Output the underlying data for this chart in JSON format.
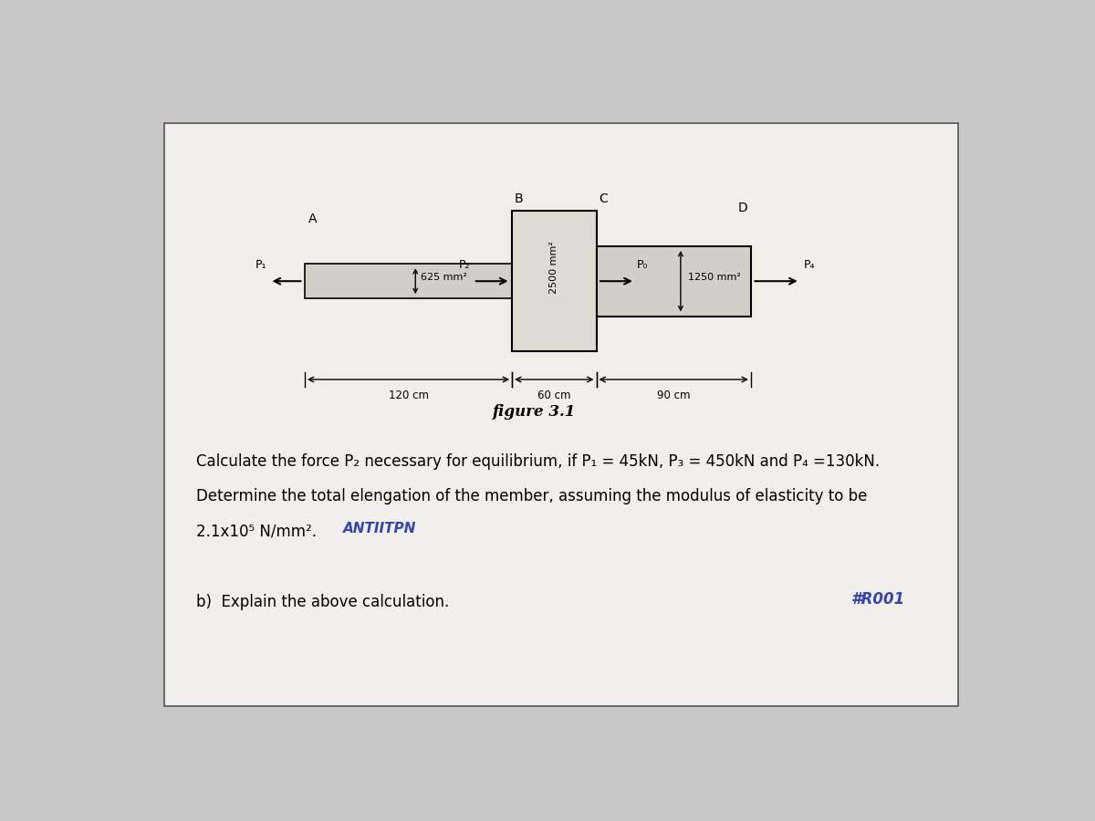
{
  "bg_color": "#c8c8c8",
  "paper_color": "#e8e8e8",
  "fig_width": 12.0,
  "fig_height": 9.0,
  "title": "figure 3.1",
  "line1": "Calculate the force P₂ necessary for equilibrium, if P₁ = 45kN, P₃ = 450kN and P₄ =130kN.",
  "line2": "Determine the total elengation of the member, assuming the modulus of elasticity to be",
  "line3": "2.1x10⁵ N/mm².",
  "line4": "b)  Explain the above calculation.",
  "section_A_label": "A",
  "section_B_label": "B",
  "section_C_label": "C",
  "section_D_label": "D",
  "area1": "625 mm²",
  "area2": "2500 mm²",
  "area3": "1250 mm²",
  "dim1": "120 cm",
  "dim2": "60 cm",
  "dim3": "90 cm",
  "P1_label": "P₁",
  "P2_label": "P₂",
  "P3_label": "P₀",
  "P4_label": "P₄",
  "bar_color": "#d0cfc8",
  "box_color": "#dcdbd4"
}
